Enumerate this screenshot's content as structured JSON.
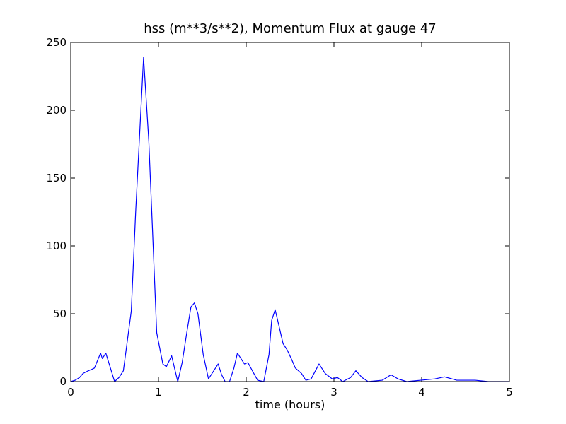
{
  "chart_data": {
    "type": "line",
    "title": "hss (m**3/s**2), Momentum Flux at gauge 47",
    "x_label": "time (hours)",
    "x": [
      0,
      0.05,
      0.1,
      0.14,
      0.2,
      0.24,
      0.27,
      0.34,
      0.36,
      0.4,
      0.5,
      0.55,
      0.6,
      0.69,
      0.74,
      0.83,
      0.89,
      0.93,
      0.98,
      1.05,
      1.09,
      1.15,
      1.19,
      1.22,
      1.27,
      1.32,
      1.37,
      1.41,
      1.45,
      1.51,
      1.57,
      1.63,
      1.68,
      1.72,
      1.76,
      1.81,
      1.86,
      1.9,
      1.95,
      1.98,
      2.02,
      2.07,
      2.13,
      2.2,
      2.26,
      2.29,
      2.33,
      2.37,
      2.42,
      2.47,
      2.52,
      2.56,
      2.63,
      2.68,
      2.74,
      2.83,
      2.9,
      2.98,
      3.04,
      3.1,
      3.19,
      3.25,
      3.32,
      3.39,
      3.55,
      3.65,
      3.73,
      3.83,
      3.99,
      4.15,
      4.26,
      4.4,
      4.61,
      4.76,
      5
    ],
    "series": [
      {
        "name": "hss",
        "color": "#0000ff",
        "values": [
          0,
          1,
          3,
          6,
          8,
          9,
          10,
          21,
          17,
          21,
          0,
          3,
          8,
          52,
          125,
          239,
          177,
          115,
          36,
          13,
          11,
          19,
          8,
          0,
          14,
          35,
          55,
          58,
          50,
          20,
          2,
          8,
          13,
          5,
          0,
          0,
          10,
          21,
          16,
          13,
          14,
          8,
          1,
          0,
          20,
          45,
          53,
          42,
          28,
          23,
          16,
          10,
          6,
          1,
          2,
          13,
          6,
          2,
          3,
          0,
          3,
          8,
          3,
          0,
          1,
          5,
          2,
          0,
          1,
          2,
          3.5,
          1,
          1,
          0,
          0
        ]
      }
    ],
    "hline": 0,
    "xlim": [
      0,
      5
    ],
    "xticks": [
      0,
      1,
      2,
      3,
      4,
      5
    ],
    "ylim": [
      0,
      250
    ],
    "yticks": [
      0,
      50,
      100,
      150,
      200,
      250
    ]
  }
}
